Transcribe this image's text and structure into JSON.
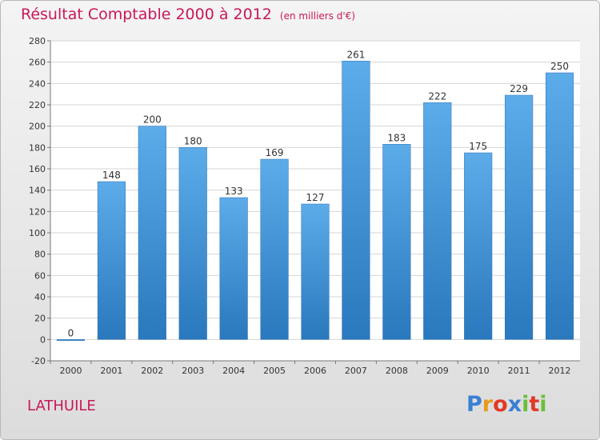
{
  "title": "Résultat Comptable 2000 à 2012",
  "subtitle": "(en milliers d'€)",
  "commune": "LATHUILE",
  "logo": {
    "letters": [
      "P",
      "r",
      "o",
      "x",
      "i",
      "t",
      "i"
    ],
    "colors": [
      "#3a7fd5",
      "#e89a1c",
      "#e03a2a",
      "#3a7fd5",
      "#6abf3a",
      "#e03a2a",
      "#6abf3a"
    ]
  },
  "chart_data": {
    "type": "bar",
    "title": "Résultat Comptable 2000 à 2012",
    "subtitle": "(en milliers d'€)",
    "categories": [
      "2000",
      "2001",
      "2002",
      "2003",
      "2004",
      "2005",
      "2006",
      "2007",
      "2008",
      "2009",
      "2010",
      "2011",
      "2012"
    ],
    "values": [
      0,
      148,
      200,
      180,
      133,
      169,
      127,
      261,
      183,
      222,
      175,
      229,
      250
    ],
    "data_labels": [
      "0",
      "148",
      "200",
      "180",
      "133",
      "169",
      "127",
      "261",
      "183",
      "222",
      "175",
      "229",
      "250"
    ],
    "ylim": [
      -20,
      280
    ],
    "yticks": [
      -20,
      0,
      20,
      40,
      60,
      80,
      100,
      120,
      140,
      160,
      180,
      200,
      220,
      240,
      260,
      280
    ],
    "xlabel": "",
    "ylabel": "",
    "grid": true,
    "bar_color": "#3b8fd6"
  }
}
